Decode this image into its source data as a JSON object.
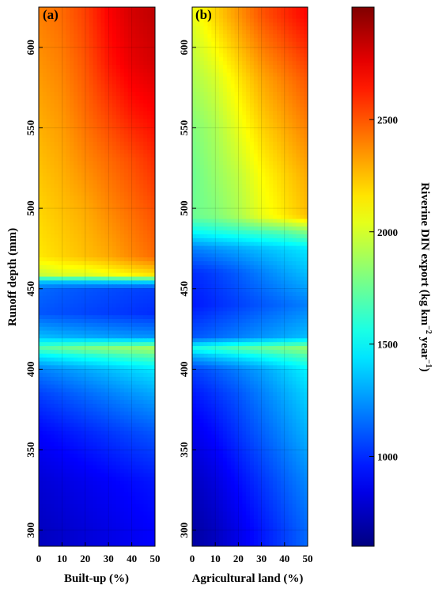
{
  "chart_data": [
    {
      "type": "heatmap",
      "panel_label": "(a)",
      "xlabel": "Built-up (%)",
      "ylabel": "Runoff depth (mm)",
      "xlim": [
        0,
        50
      ],
      "ylim": [
        290,
        625
      ],
      "x_ticks": [
        0,
        10,
        20,
        30,
        40,
        50
      ],
      "y_ticks": [
        300,
        350,
        400,
        450,
        500,
        550,
        600
      ],
      "x": [
        0,
        10,
        20,
        30,
        40,
        50
      ],
      "y": [
        300,
        330,
        360,
        385,
        400,
        408,
        413,
        420,
        435,
        450,
        455,
        458,
        470,
        500,
        530,
        560,
        590,
        620
      ],
      "z": [
        [
          750,
          780,
          810,
          840,
          870,
          900
        ],
        [
          800,
          830,
          860,
          890,
          920,
          950
        ],
        [
          900,
          940,
          980,
          1020,
          1060,
          1100
        ],
        [
          1050,
          1100,
          1150,
          1200,
          1250,
          1300
        ],
        [
          1200,
          1250,
          1300,
          1350,
          1400,
          1450
        ],
        [
          1450,
          1500,
          1550,
          1600,
          1650,
          1700
        ],
        [
          1700,
          1750,
          1800,
          1830,
          1860,
          1900
        ],
        [
          1350,
          1320,
          1300,
          1280,
          1260,
          1250
        ],
        [
          1100,
          1080,
          1060,
          1040,
          1020,
          1000
        ],
        [
          1150,
          1120,
          1100,
          1080,
          1060,
          1050
        ],
        [
          1400,
          1400,
          1420,
          1440,
          1460,
          1480
        ],
        [
          1950,
          2000,
          2000,
          2050,
          2100,
          2150
        ],
        [
          2150,
          2200,
          2250,
          2300,
          2380,
          2450
        ],
        [
          2200,
          2250,
          2300,
          2380,
          2450,
          2520
        ],
        [
          2250,
          2300,
          2380,
          2450,
          2520,
          2600
        ],
        [
          2300,
          2350,
          2450,
          2550,
          2650,
          2700
        ],
        [
          2350,
          2400,
          2500,
          2650,
          2750,
          2800
        ],
        [
          2400,
          2450,
          2550,
          2700,
          2800,
          2850
        ]
      ]
    },
    {
      "type": "heatmap",
      "panel_label": "(b)",
      "xlabel": "Agricultural land (%)",
      "ylabel": "",
      "xlim": [
        0,
        50
      ],
      "ylim": [
        290,
        625
      ],
      "x_ticks": [
        0,
        10,
        20,
        30,
        40,
        50
      ],
      "y_ticks": [
        300,
        350,
        400,
        450,
        500,
        550,
        600
      ],
      "x": [
        0,
        10,
        20,
        30,
        40,
        50
      ],
      "y": [
        300,
        330,
        360,
        385,
        400,
        408,
        413,
        420,
        440,
        460,
        475,
        485,
        495,
        520,
        550,
        580,
        610,
        620
      ],
      "z": [
        [
          680,
          750,
          850,
          950,
          1050,
          1150
        ],
        [
          750,
          820,
          920,
          1020,
          1120,
          1220
        ],
        [
          850,
          920,
          1020,
          1120,
          1220,
          1320
        ],
        [
          950,
          1020,
          1100,
          1200,
          1300,
          1400
        ],
        [
          1050,
          1120,
          1200,
          1280,
          1380,
          1480
        ],
        [
          1300,
          1380,
          1450,
          1520,
          1600,
          1680
        ],
        [
          1550,
          1620,
          1700,
          1750,
          1800,
          1850
        ],
        [
          1100,
          1150,
          1200,
          1250,
          1300,
          1350
        ],
        [
          950,
          1000,
          1050,
          1100,
          1150,
          1200
        ],
        [
          1000,
          1050,
          1120,
          1200,
          1280,
          1350
        ],
        [
          1200,
          1250,
          1300,
          1350,
          1400,
          1450
        ],
        [
          1500,
          1550,
          1600,
          1650,
          1700,
          1800
        ],
        [
          1750,
          1800,
          1900,
          2050,
          2150,
          2250
        ],
        [
          1750,
          1850,
          1950,
          2100,
          2200,
          2300
        ],
        [
          1800,
          1900,
          2050,
          2200,
          2300,
          2400
        ],
        [
          1900,
          2000,
          2150,
          2300,
          2400,
          2500
        ],
        [
          2000,
          2150,
          2300,
          2450,
          2550,
          2650
        ],
        [
          2050,
          2200,
          2350,
          2500,
          2600,
          2700
        ]
      ]
    }
  ],
  "colorbar": {
    "label": "Riverine DIN export (kg km",
    "label_sup1": "−2",
    "label_mid": " year",
    "label_sup2": "−1",
    "label_end": ")",
    "min": 600,
    "max": 3000,
    "ticks": [
      1000,
      1500,
      2000,
      2500
    ],
    "tick_labels": [
      "1000",
      "1500",
      "2000",
      "2500"
    ],
    "colormap": "jet"
  }
}
